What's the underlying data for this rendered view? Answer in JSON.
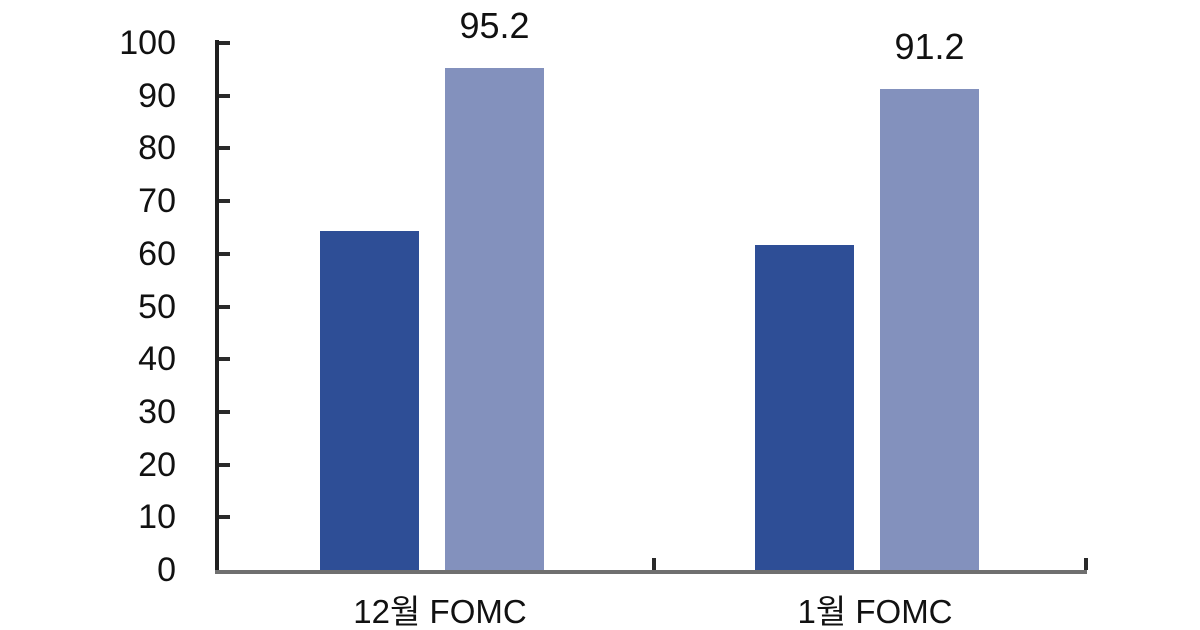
{
  "chart_data": {
    "type": "bar",
    "title": "",
    "xlabel": "",
    "ylabel": "",
    "categories": [
      "12월 FOMC",
      "1월 FOMC"
    ],
    "series": [
      {
        "name": "dark-blue-series",
        "color": "#2e4e96",
        "values": [
          64.3,
          61.7
        ],
        "show_value_labels": false
      },
      {
        "name": "light-blue-series",
        "color": "#8391bd",
        "values": [
          95.2,
          91.2
        ],
        "show_value_labels": true
      }
    ],
    "value_labels": [
      "95.2",
      "91.2"
    ],
    "yticks": [
      0,
      10,
      20,
      30,
      40,
      50,
      60,
      70,
      80,
      90,
      100
    ],
    "ylim": [
      0,
      100
    ],
    "grid": false,
    "legend": "none",
    "colors": {
      "y_axis": "#1f1f1f",
      "x_axis": "#6f6f6f",
      "tick": "#2a2a2a",
      "text": "#111111",
      "background": "#ffffff"
    }
  }
}
